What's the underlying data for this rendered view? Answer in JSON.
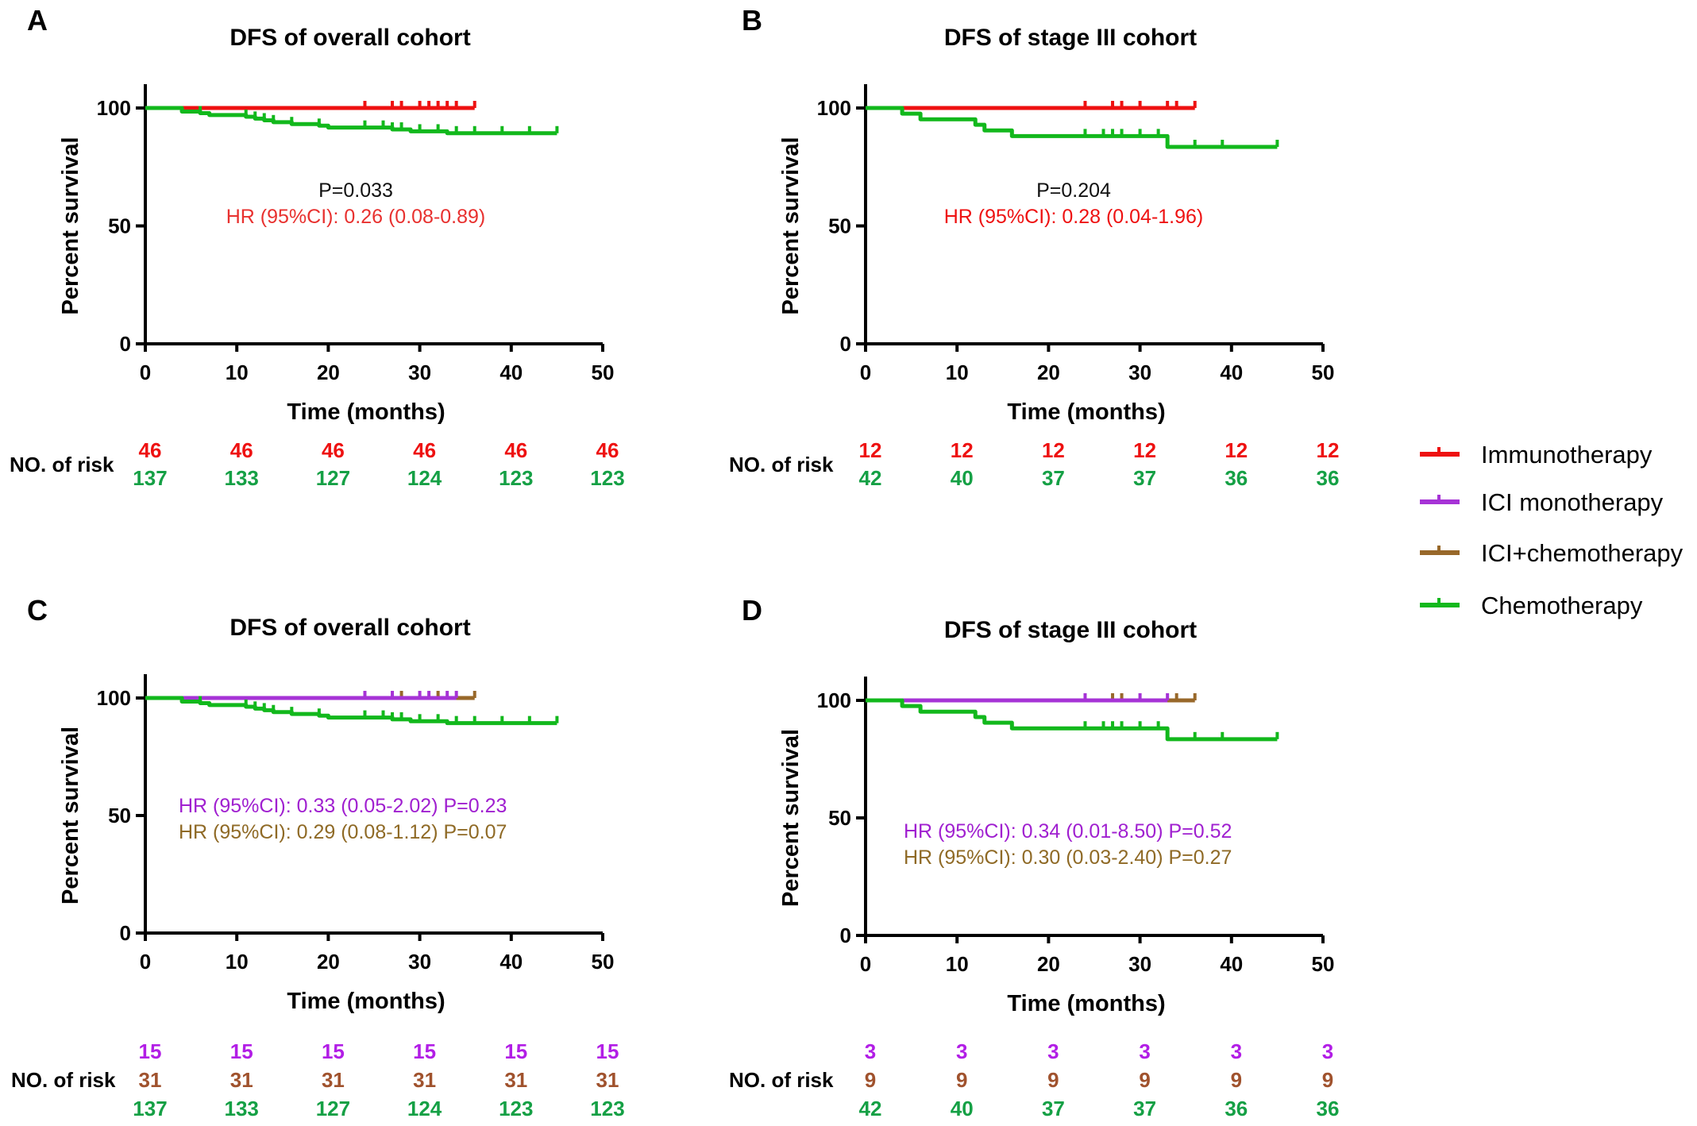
{
  "colors": {
    "immunotherapy": "#ee1111",
    "ici_mono": "#a633d6",
    "ici_chemo": "#98682a",
    "chemo": "#12b81c",
    "risk_red": "#ee1111",
    "risk_green": "#15a045",
    "risk_purple": "#b21ee6",
    "risk_brown": "#a0522d",
    "annot_red": "#e8312f",
    "annot_purple": "#a020d0",
    "annot_brown": "#8f6a26"
  },
  "legend": [
    {
      "label": "Immunotherapy",
      "color": "#ee1111"
    },
    {
      "label": "ICI monotherapy",
      "color": "#a633d6"
    },
    {
      "label": "ICI+chemotherapy",
      "color": "#98682a"
    },
    {
      "label": "Chemotherapy",
      "color": "#12b81c"
    }
  ],
  "chart_data": [
    {
      "type": "line",
      "letter": "A",
      "title": "DFS of overall cohort",
      "xlabel": "Time (months)",
      "ylabel": "Percent survival",
      "xlim": [
        0,
        50
      ],
      "ylim": [
        0,
        100
      ],
      "xticks": [
        0,
        10,
        20,
        30,
        40,
        50
      ],
      "yticks": [
        0,
        50,
        100
      ],
      "series": [
        {
          "name": "Immunotherapy",
          "color": "#ee1111",
          "steps": [],
          "end": 36,
          "censors": [
            24,
            27,
            28,
            30,
            31,
            32,
            33,
            34,
            36
          ]
        },
        {
          "name": "Chemotherapy",
          "color": "#12b81c",
          "steps": [
            [
              4,
              98.5
            ],
            [
              6,
              97.8
            ],
            [
              7,
              97.0
            ],
            [
              11,
              96.3
            ],
            [
              12,
              95.5
            ],
            [
              13,
              94.8
            ],
            [
              14,
              94.0
            ],
            [
              16,
              93.2
            ],
            [
              19,
              92.5
            ],
            [
              20,
              91.7
            ],
            [
              27,
              90.9
            ],
            [
              29,
              90.1
            ],
            [
              33,
              89.3
            ]
          ],
          "end": 45,
          "censors": [
            6,
            11,
            12,
            13,
            14,
            16,
            19,
            24,
            26,
            27,
            28,
            30,
            32,
            34,
            36,
            39,
            42,
            45
          ]
        }
      ],
      "annotations": [
        {
          "text": "P=0.033",
          "color": "#111111"
        },
        {
          "text": "HR (95%CI): 0.26 (0.08-0.89)",
          "color": "#e8312f"
        }
      ],
      "risk": {
        "label": "NO. of risk",
        "rows": [
          {
            "color": "#ee1111",
            "values": [
              "46",
              "46",
              "46",
              "46",
              "46",
              "46"
            ]
          },
          {
            "color": "#15a045",
            "values": [
              "137",
              "133",
              "127",
              "124",
              "123",
              "123"
            ]
          }
        ]
      }
    },
    {
      "type": "line",
      "letter": "B",
      "title": "DFS of stage III cohort",
      "xlabel": "Time (months)",
      "ylabel": "Percent survival",
      "xlim": [
        0,
        50
      ],
      "ylim": [
        0,
        100
      ],
      "xticks": [
        0,
        10,
        20,
        30,
        40,
        50
      ],
      "yticks": [
        0,
        50,
        100
      ],
      "series": [
        {
          "name": "Immunotherapy",
          "color": "#ee1111",
          "steps": [],
          "end": 36,
          "censors": [
            24,
            27,
            28,
            30,
            33,
            34,
            36
          ]
        },
        {
          "name": "Chemotherapy",
          "color": "#12b81c",
          "steps": [
            [
              4,
              97.6
            ],
            [
              6,
              95.2
            ],
            [
              12,
              92.9
            ],
            [
              13,
              90.5
            ],
            [
              16,
              88.1
            ],
            [
              33,
              83.5
            ]
          ],
          "end": 45,
          "censors": [
            24,
            26,
            27,
            28,
            30,
            32,
            36,
            39,
            45
          ]
        }
      ],
      "annotations": [
        {
          "text": "P=0.204",
          "color": "#111111"
        },
        {
          "text": "HR (95%CI): 0.28 (0.04-1.96)",
          "color": "#ee1111"
        }
      ],
      "risk": {
        "label": "NO. of risk",
        "rows": [
          {
            "color": "#ee1111",
            "values": [
              "12",
              "12",
              "12",
              "12",
              "12",
              "12"
            ]
          },
          {
            "color": "#15a045",
            "values": [
              "42",
              "40",
              "37",
              "37",
              "36",
              "36"
            ]
          }
        ]
      }
    },
    {
      "type": "line",
      "letter": "C",
      "title": "DFS of overall cohort",
      "xlabel": "Time (months)",
      "ylabel": "Percent survival",
      "xlim": [
        0,
        50
      ],
      "ylim": [
        0,
        100
      ],
      "xticks": [
        0,
        10,
        20,
        30,
        40,
        50
      ],
      "yticks": [
        0,
        50,
        100
      ],
      "series": [
        {
          "name": "ICI+chemotherapy",
          "color": "#98682a",
          "steps": [],
          "end": 36,
          "censors": [
            28,
            32,
            36
          ]
        },
        {
          "name": "ICI monotherapy",
          "color": "#a633d6",
          "steps": [],
          "end": 34,
          "censors": [
            24,
            27,
            30,
            31,
            33,
            34
          ]
        },
        {
          "name": "Chemotherapy",
          "color": "#12b81c",
          "steps": [
            [
              4,
              98.5
            ],
            [
              6,
              97.8
            ],
            [
              7,
              97.0
            ],
            [
              11,
              96.3
            ],
            [
              12,
              95.5
            ],
            [
              13,
              94.8
            ],
            [
              14,
              94.0
            ],
            [
              16,
              93.2
            ],
            [
              19,
              92.5
            ],
            [
              20,
              91.7
            ],
            [
              27,
              90.9
            ],
            [
              29,
              90.1
            ],
            [
              33,
              89.3
            ]
          ],
          "end": 45,
          "censors": [
            6,
            11,
            12,
            13,
            14,
            16,
            19,
            24,
            26,
            27,
            28,
            30,
            32,
            34,
            36,
            39,
            42,
            45
          ]
        }
      ],
      "annotations": [
        {
          "text": "HR (95%CI): 0.33 (0.05-2.02) P=0.23",
          "color": "#a020d0"
        },
        {
          "text": "HR (95%CI): 0.29 (0.08-1.12) P=0.07",
          "color": "#8f6a26"
        }
      ],
      "risk": {
        "label": "NO. of risk",
        "rows": [
          {
            "color": "#b21ee6",
            "values": [
              "15",
              "15",
              "15",
              "15",
              "15",
              "15"
            ]
          },
          {
            "color": "#a0522d",
            "values": [
              "31",
              "31",
              "31",
              "31",
              "31",
              "31"
            ]
          },
          {
            "color": "#15a045",
            "values": [
              "137",
              "133",
              "127",
              "124",
              "123",
              "123"
            ]
          }
        ]
      }
    },
    {
      "type": "line",
      "letter": "D",
      "title": "DFS of stage III cohort",
      "xlabel": "Time (months)",
      "ylabel": "Percent survival",
      "xlim": [
        0,
        50
      ],
      "ylim": [
        0,
        100
      ],
      "xticks": [
        0,
        10,
        20,
        30,
        40,
        50
      ],
      "yticks": [
        0,
        50,
        100
      ],
      "series": [
        {
          "name": "ICI+chemotherapy",
          "color": "#98682a",
          "steps": [],
          "end": 36,
          "censors": [
            27,
            28,
            34,
            36
          ]
        },
        {
          "name": "ICI monotherapy",
          "color": "#a633d6",
          "steps": [],
          "end": 33,
          "censors": [
            24,
            30,
            33
          ]
        },
        {
          "name": "Chemotherapy",
          "color": "#12b81c",
          "steps": [
            [
              4,
              97.6
            ],
            [
              6,
              95.2
            ],
            [
              12,
              92.9
            ],
            [
              13,
              90.5
            ],
            [
              16,
              88.1
            ],
            [
              33,
              83.5
            ]
          ],
          "end": 45,
          "censors": [
            24,
            26,
            27,
            28,
            30,
            32,
            36,
            39,
            45
          ]
        }
      ],
      "annotations": [
        {
          "text": "HR (95%CI): 0.34 (0.01-8.50) P=0.52",
          "color": "#a020d0"
        },
        {
          "text": "HR (95%CI): 0.30 (0.03-2.40) P=0.27",
          "color": "#8f6a26"
        }
      ],
      "risk": {
        "label": "NO. of risk",
        "rows": [
          {
            "color": "#b21ee6",
            "values": [
              "3",
              "3",
              "3",
              "3",
              "3",
              "3"
            ]
          },
          {
            "color": "#a0522d",
            "values": [
              "9",
              "9",
              "9",
              "9",
              "9",
              "9"
            ]
          },
          {
            "color": "#15a045",
            "values": [
              "42",
              "40",
              "37",
              "37",
              "36",
              "36"
            ]
          }
        ]
      }
    }
  ]
}
